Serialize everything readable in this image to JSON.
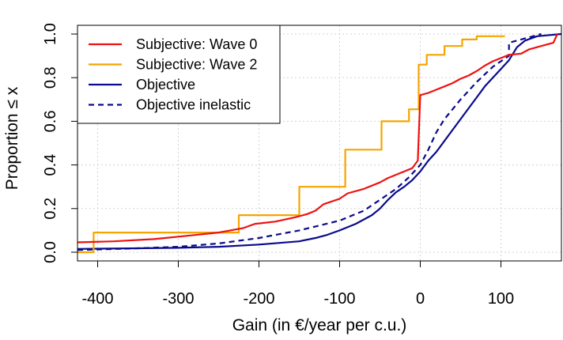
{
  "chart_data": {
    "type": "line",
    "xlabel": "Gain (in €/year per c.u.)",
    "ylabel": "Proportion  ≤  x",
    "xlim": [
      -425,
      175
    ],
    "ylim": [
      -0.04,
      1.04
    ],
    "x_ticks": [
      "-400",
      "-300",
      "-200",
      "-100",
      "0",
      "100"
    ],
    "y_ticks": [
      "0.0",
      "0.2",
      "0.4",
      "0.6",
      "0.8",
      "1.0"
    ],
    "grid": true,
    "legend_position": "top-left",
    "series": [
      {
        "name": "Subjective: Wave 0",
        "color": "#ee1111",
        "style": "solid",
        "step": false,
        "points": [
          [
            -425,
            0.045
          ],
          [
            -380,
            0.05
          ],
          [
            -330,
            0.06
          ],
          [
            -290,
            0.075
          ],
          [
            -250,
            0.09
          ],
          [
            -220,
            0.11
          ],
          [
            -205,
            0.13
          ],
          [
            -180,
            0.14
          ],
          [
            -155,
            0.16
          ],
          [
            -140,
            0.175
          ],
          [
            -130,
            0.19
          ],
          [
            -120,
            0.22
          ],
          [
            -100,
            0.245
          ],
          [
            -90,
            0.27
          ],
          [
            -70,
            0.29
          ],
          [
            -50,
            0.32
          ],
          [
            -40,
            0.34
          ],
          [
            -30,
            0.355
          ],
          [
            -20,
            0.37
          ],
          [
            -10,
            0.385
          ],
          [
            -3,
            0.42
          ],
          [
            0,
            0.72
          ],
          [
            10,
            0.73
          ],
          [
            20,
            0.745
          ],
          [
            30,
            0.76
          ],
          [
            40,
            0.775
          ],
          [
            50,
            0.795
          ],
          [
            60,
            0.81
          ],
          [
            70,
            0.83
          ],
          [
            80,
            0.855
          ],
          [
            90,
            0.875
          ],
          [
            100,
            0.89
          ],
          [
            110,
            0.905
          ],
          [
            125,
            0.91
          ],
          [
            135,
            0.93
          ],
          [
            150,
            0.945
          ],
          [
            165,
            0.96
          ],
          [
            170,
            1.0
          ]
        ]
      },
      {
        "name": "Subjective: Wave 2",
        "color": "#f5a500",
        "style": "solid",
        "step": true,
        "points": [
          [
            -425,
            0.0
          ],
          [
            -405,
            0.0
          ],
          [
            -405,
            0.09
          ],
          [
            -225,
            0.09
          ],
          [
            -225,
            0.17
          ],
          [
            -150,
            0.17
          ],
          [
            -150,
            0.3
          ],
          [
            -93,
            0.3
          ],
          [
            -93,
            0.47
          ],
          [
            -48,
            0.47
          ],
          [
            -48,
            0.6
          ],
          [
            -14,
            0.6
          ],
          [
            -14,
            0.655
          ],
          [
            -2,
            0.655
          ],
          [
            -2,
            0.86
          ],
          [
            8,
            0.86
          ],
          [
            8,
            0.905
          ],
          [
            30,
            0.905
          ],
          [
            30,
            0.945
          ],
          [
            52,
            0.945
          ],
          [
            52,
            0.975
          ],
          [
            70,
            0.975
          ],
          [
            70,
            0.99
          ],
          [
            105,
            0.99
          ]
        ]
      },
      {
        "name": "Objective",
        "color": "#0a0a8c",
        "style": "solid",
        "step": false,
        "points": [
          [
            -425,
            0.015
          ],
          [
            -350,
            0.018
          ],
          [
            -300,
            0.02
          ],
          [
            -250,
            0.025
          ],
          [
            -200,
            0.035
          ],
          [
            -150,
            0.05
          ],
          [
            -130,
            0.065
          ],
          [
            -115,
            0.08
          ],
          [
            -100,
            0.1
          ],
          [
            -80,
            0.13
          ],
          [
            -60,
            0.17
          ],
          [
            -50,
            0.2
          ],
          [
            -40,
            0.24
          ],
          [
            -30,
            0.275
          ],
          [
            -20,
            0.3
          ],
          [
            -10,
            0.33
          ],
          [
            0,
            0.37
          ],
          [
            10,
            0.42
          ],
          [
            20,
            0.46
          ],
          [
            30,
            0.51
          ],
          [
            40,
            0.56
          ],
          [
            50,
            0.61
          ],
          [
            60,
            0.66
          ],
          [
            70,
            0.71
          ],
          [
            80,
            0.76
          ],
          [
            90,
            0.8
          ],
          [
            100,
            0.84
          ],
          [
            110,
            0.88
          ],
          [
            120,
            0.94
          ],
          [
            130,
            0.97
          ],
          [
            145,
            0.99
          ],
          [
            175,
            1.0
          ]
        ]
      },
      {
        "name": "Objective inelastic",
        "color": "#0a0a8c",
        "style": "dashed",
        "step": false,
        "points": [
          [
            -425,
            0.01
          ],
          [
            -350,
            0.018
          ],
          [
            -300,
            0.025
          ],
          [
            -250,
            0.04
          ],
          [
            -200,
            0.065
          ],
          [
            -150,
            0.1
          ],
          [
            -100,
            0.145
          ],
          [
            -70,
            0.19
          ],
          [
            -50,
            0.24
          ],
          [
            -30,
            0.29
          ],
          [
            -15,
            0.34
          ],
          [
            0,
            0.4
          ],
          [
            10,
            0.47
          ],
          [
            20,
            0.55
          ],
          [
            30,
            0.61
          ],
          [
            50,
            0.7
          ],
          [
            70,
            0.78
          ],
          [
            90,
            0.85
          ],
          [
            110,
            0.9
          ],
          [
            110,
            0.96
          ],
          [
            125,
            0.975
          ],
          [
            150,
            1.0
          ]
        ]
      }
    ]
  }
}
